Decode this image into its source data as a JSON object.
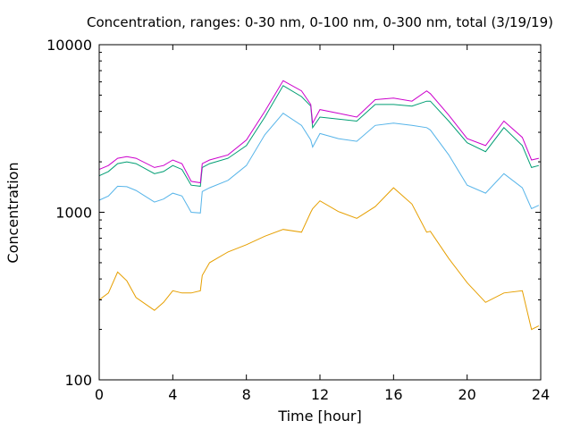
{
  "chart_data": {
    "type": "line",
    "title": "Concentration, ranges: 0-30 nm, 0-100 nm, 0-300 nm, total (3/19/19)",
    "xlabel": "Time [hour]",
    "ylabel": "Concentration",
    "xlim": [
      0,
      24
    ],
    "ylim": [
      100,
      10000
    ],
    "yscale": "log",
    "grid": false,
    "legend": "none",
    "x_ticks": [
      0,
      4,
      8,
      12,
      16,
      20,
      24
    ],
    "x_tick_labels": [
      "0",
      "4",
      "8",
      "12",
      "16",
      "20",
      "24"
    ],
    "y_ticks": [
      100,
      1000,
      10000
    ],
    "y_tick_labels": [
      "100",
      "1000",
      "10000"
    ],
    "series": [
      {
        "color": "#e69f00",
        "x": [
          0,
          0.5,
          1,
          1.5,
          2,
          3,
          3.5,
          4,
          4.5,
          5,
          5.5,
          5.6,
          6,
          7,
          8,
          9,
          10,
          11,
          11.5,
          11.6,
          12,
          13,
          14,
          15,
          16,
          17,
          17.8,
          18,
          19,
          20,
          21,
          22,
          23,
          23.5,
          23.9
        ],
        "y": [
          300,
          330,
          440,
          390,
          310,
          260,
          290,
          340,
          330,
          330,
          340,
          420,
          500,
          580,
          640,
          720,
          790,
          760,
          1000,
          1050,
          1170,
          1010,
          920,
          1080,
          1400,
          1120,
          760,
          770,
          530,
          380,
          290,
          330,
          340,
          200,
          210
        ]
      },
      {
        "color": "#56b4e9",
        "x": [
          0,
          0.5,
          1,
          1.5,
          2,
          3,
          3.5,
          4,
          4.5,
          5,
          5.5,
          5.6,
          6,
          7,
          8,
          9,
          10,
          11,
          11.5,
          11.6,
          12,
          13,
          14,
          15,
          16,
          17,
          17.8,
          18,
          19,
          20,
          21,
          22,
          23,
          23.5,
          23.9
        ],
        "y": [
          1180,
          1250,
          1430,
          1420,
          1350,
          1150,
          1200,
          1300,
          1250,
          1000,
          990,
          1330,
          1400,
          1550,
          1900,
          2900,
          3900,
          3300,
          2700,
          2450,
          2950,
          2750,
          2650,
          3300,
          3400,
          3300,
          3200,
          3100,
          2200,
          1450,
          1300,
          1700,
          1400,
          1050,
          1100
        ]
      },
      {
        "color": "#009e73",
        "x": [
          0,
          0.5,
          1,
          1.5,
          2,
          3,
          3.5,
          4,
          4.5,
          5,
          5.5,
          5.6,
          6,
          7,
          8,
          9,
          10,
          11,
          11.5,
          11.6,
          12,
          13,
          14,
          15,
          16,
          17,
          17.8,
          18,
          19,
          20,
          21,
          22,
          23,
          23.5,
          23.9
        ],
        "y": [
          1650,
          1750,
          1950,
          2000,
          1950,
          1700,
          1750,
          1900,
          1800,
          1450,
          1430,
          1850,
          1950,
          2100,
          2500,
          3700,
          5700,
          4900,
          4300,
          3200,
          3700,
          3600,
          3500,
          4400,
          4400,
          4300,
          4600,
          4600,
          3500,
          2600,
          2300,
          3200,
          2500,
          1850,
          1900
        ]
      },
      {
        "color": "#cc00cc",
        "x": [
          0,
          0.5,
          1,
          1.5,
          2,
          3,
          3.5,
          4,
          4.5,
          5,
          5.5,
          5.6,
          6,
          7,
          8,
          9,
          10,
          11,
          11.5,
          11.6,
          12,
          13,
          14,
          15,
          16,
          17,
          17.8,
          18,
          19,
          20,
          21,
          22,
          23,
          23.5,
          23.9
        ],
        "y": [
          1800,
          1900,
          2100,
          2150,
          2100,
          1850,
          1900,
          2050,
          1950,
          1530,
          1500,
          1950,
          2050,
          2200,
          2700,
          4000,
          6100,
          5300,
          4400,
          3400,
          4100,
          3900,
          3700,
          4700,
          4800,
          4600,
          5300,
          5100,
          3800,
          2750,
          2500,
          3500,
          2800,
          2050,
          2100
        ]
      }
    ]
  }
}
